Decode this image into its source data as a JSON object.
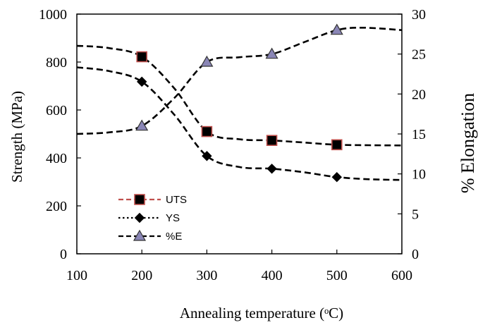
{
  "chart_data": {
    "type": "line",
    "title": "",
    "xlabel": "Annealing temperature (ᵒC)",
    "ylabel_left": "Strength  (MPa)",
    "ylabel_right": "% Elongation",
    "xlim": [
      100,
      600
    ],
    "ylim_left": [
      0,
      1000
    ],
    "ylim_right": [
      0,
      30
    ],
    "x_ticks": [
      "100",
      "200",
      "300",
      "400",
      "500",
      "600"
    ],
    "y_left_ticks": [
      "0",
      "200",
      "400",
      "600",
      "800",
      "1000"
    ],
    "y_right_ticks": [
      "0",
      "5",
      "10",
      "15",
      "20",
      "25",
      "30"
    ],
    "grid": false,
    "legend_position": "lower-left",
    "series": [
      {
        "name": "UTS",
        "axis": "left",
        "marker": "square",
        "marker_fill": "#000000",
        "marker_edge": "#c0504d",
        "line_color": "#000000",
        "line_style": "dashed",
        "points": [
          [
            200,
            822
          ],
          [
            300,
            510
          ],
          [
            400,
            473
          ],
          [
            500,
            455
          ]
        ],
        "curve": [
          [
            100,
            868
          ],
          [
            150,
            858
          ],
          [
            200,
            822
          ],
          [
            250,
            690
          ],
          [
            300,
            510
          ],
          [
            350,
            478
          ],
          [
            400,
            473
          ],
          [
            450,
            464
          ],
          [
            500,
            455
          ],
          [
            550,
            453
          ],
          [
            600,
            452
          ]
        ]
      },
      {
        "name": "YS",
        "axis": "left",
        "marker": "diamond",
        "marker_fill": "#000000",
        "marker_edge": "#000000",
        "line_color": "#000000",
        "line_style": "dashed",
        "legend_line_style": "dotted",
        "points": [
          [
            200,
            718
          ],
          [
            300,
            408
          ],
          [
            400,
            355
          ],
          [
            500,
            320
          ]
        ],
        "curve": [
          [
            100,
            778
          ],
          [
            150,
            762
          ],
          [
            200,
            718
          ],
          [
            250,
            580
          ],
          [
            300,
            408
          ],
          [
            350,
            362
          ],
          [
            400,
            355
          ],
          [
            450,
            340
          ],
          [
            500,
            320
          ],
          [
            550,
            311
          ],
          [
            600,
            308
          ]
        ]
      },
      {
        "name": "%E",
        "axis": "right",
        "marker": "triangle",
        "marker_fill": "#8a86b6",
        "marker_edge": "#333333",
        "line_color": "#000000",
        "line_style": "dashed",
        "points": [
          [
            200,
            16
          ],
          [
            300,
            24
          ],
          [
            400,
            25
          ],
          [
            500,
            28
          ]
        ],
        "curve": [
          [
            100,
            15
          ],
          [
            150,
            15.2
          ],
          [
            200,
            16
          ],
          [
            250,
            19.5
          ],
          [
            300,
            24
          ],
          [
            350,
            24.6
          ],
          [
            400,
            25
          ],
          [
            450,
            26.5
          ],
          [
            500,
            28
          ],
          [
            540,
            28.3
          ],
          [
            600,
            28
          ]
        ]
      }
    ]
  }
}
